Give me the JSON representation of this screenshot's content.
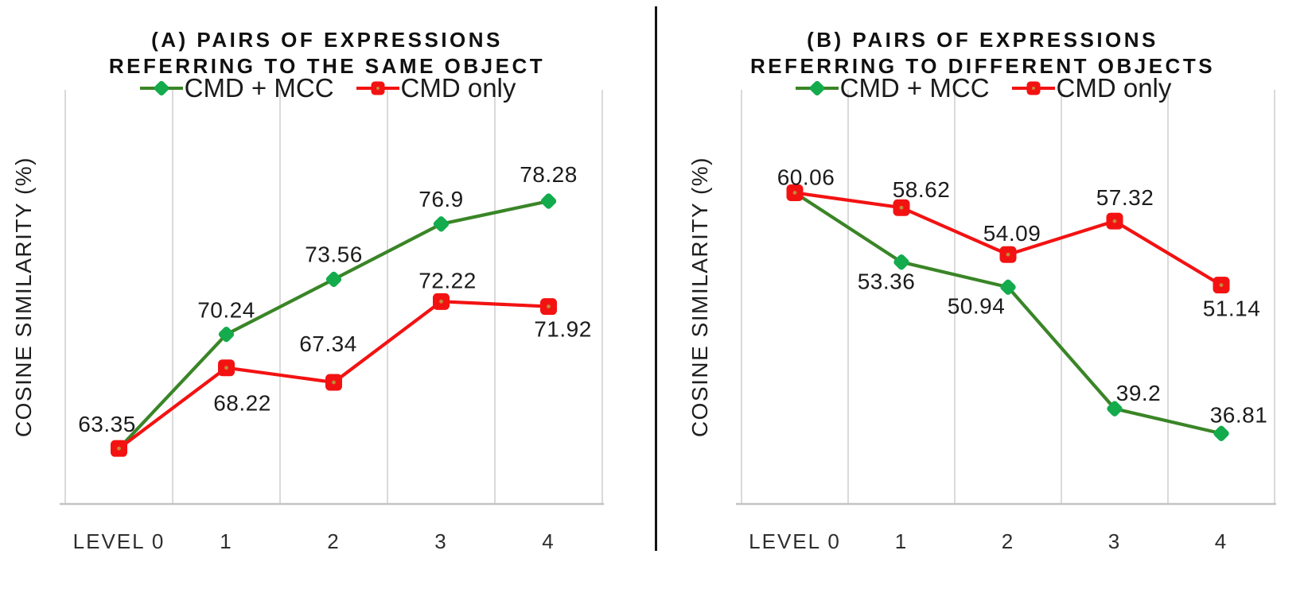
{
  "page": {
    "background": "#ffffff"
  },
  "colors": {
    "green_line": "#3a8527",
    "green_marker": "#14ab4d",
    "red_line": "#f31212",
    "red_marker": "#f31212",
    "red_marker_center": "#c18a38",
    "grid": "#dadada",
    "axis": "#c3c3c3",
    "divider": "#141414",
    "label_text": "#1c1c1c"
  },
  "chart_data": [
    {
      "type": "line",
      "panel_label": "A",
      "title_line1": "(A) PAIRS OF EXPRESSIONS",
      "title_line2": "REFERRING TO THE SAME OBJECT",
      "ylabel": "COSINE SIMILARITY (%)",
      "xlabel": "",
      "categories": [
        "LEVEL 0",
        "1",
        "2",
        "3",
        "4"
      ],
      "ylim": [
        60,
        85
      ],
      "grid": "vertical-only",
      "legend_position": "top-center",
      "series": [
        {
          "name": "CMD + MCC",
          "marker": "diamond",
          "line_color": "#3a8527",
          "marker_color": "#14ab4d",
          "values": [
            63.35,
            70.24,
            73.56,
            76.9,
            78.28
          ],
          "labels": [
            "",
            "70.24",
            "73.56",
            "76.9",
            "78.28"
          ],
          "label_offsets": [
            [
              0,
              0
            ],
            [
              0,
              -31
            ],
            [
              0,
              -32
            ],
            [
              0,
              -32
            ],
            [
              0,
              -34
            ]
          ]
        },
        {
          "name": "CMD only",
          "marker": "square",
          "line_color": "#f31212",
          "marker_color": "#f31212",
          "values": [
            63.35,
            68.22,
            67.34,
            72.22,
            71.92
          ],
          "labels": [
            "63.35",
            "68.22",
            "67.34",
            "72.22",
            "71.92"
          ],
          "label_offsets": [
            [
              -15,
              -31
            ],
            [
              20,
              44
            ],
            [
              -7,
              -49
            ],
            [
              8,
              -27
            ],
            [
              18,
              28
            ]
          ]
        }
      ]
    },
    {
      "type": "line",
      "panel_label": "B",
      "title_line1": "(B) PAIRS OF EXPRESSIONS",
      "title_line2": "REFERRING TO DIFFERENT OBJECTS",
      "ylabel": "COSINE SIMILARITY (%)",
      "xlabel": "",
      "categories": [
        "LEVEL 0",
        "1",
        "2",
        "3",
        "4"
      ],
      "ylim": [
        30,
        70
      ],
      "grid": "vertical-only",
      "legend_position": "top-center",
      "series": [
        {
          "name": "CMD + MCC",
          "marker": "diamond",
          "line_color": "#3a8527",
          "marker_color": "#14ab4d",
          "values": [
            60.06,
            53.36,
            50.94,
            39.2,
            36.81
          ],
          "labels": [
            "",
            "53.36",
            "50.94",
            "39.2",
            "36.81"
          ],
          "label_offsets": [
            [
              0,
              0
            ],
            [
              -19,
              24
            ],
            [
              -40,
              23
            ],
            [
              30,
              -20
            ],
            [
              22,
              -24
            ]
          ]
        },
        {
          "name": "CMD only",
          "marker": "square",
          "line_color": "#f31212",
          "marker_color": "#f31212",
          "values": [
            60.06,
            58.62,
            54.09,
            57.32,
            51.14
          ],
          "labels": [
            "60.06",
            "58.62",
            "54.09",
            "57.32",
            "51.14"
          ],
          "label_offsets": [
            [
              14,
              -20
            ],
            [
              25,
              -23
            ],
            [
              5,
              -27
            ],
            [
              13,
              -30
            ],
            [
              13,
              29
            ]
          ]
        }
      ]
    }
  ]
}
